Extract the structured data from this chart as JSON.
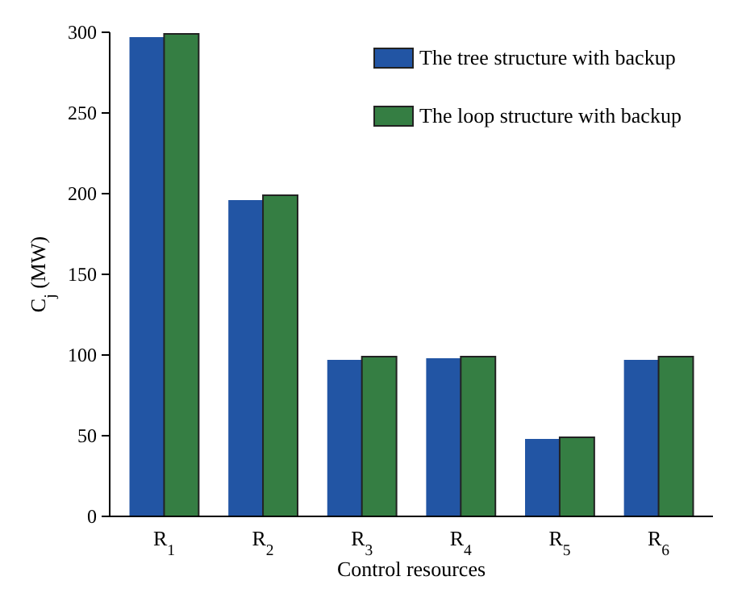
{
  "chart_data": {
    "type": "bar",
    "xlabel": "Control resources",
    "ylabel": "C$_{j}$ (MW)",
    "categories": [
      "R$_{1}$",
      "R$_{2}$",
      "R$_{3}$",
      "R$_{4}$",
      "R$_{5}$",
      "R$_{6}$"
    ],
    "series": [
      {
        "name": "The tree structure with backup",
        "color": "#2255a4",
        "values": [
          297,
          196,
          97,
          98,
          48,
          97
        ]
      },
      {
        "name": "The loop structure with backup",
        "color": "#357e43",
        "values": [
          299,
          199,
          99,
          99,
          49,
          99
        ]
      }
    ],
    "ylim": [
      0,
      300
    ],
    "yticks": [
      0,
      50,
      100,
      150,
      200,
      250,
      300
    ],
    "grid": false,
    "legend": "top right"
  }
}
